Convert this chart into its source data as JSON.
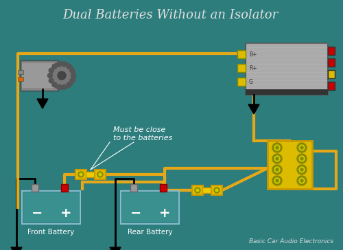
{
  "title": "Dual Batteries Without an Isolator",
  "bg_color": "#2d7d7d",
  "wire_color": "#e6a817",
  "title_color": "#e0e0e0",
  "text_color": "#ffffff",
  "subtitle": "Basic Car Audio Electronics",
  "annotation": "Must be close\nto the batteries",
  "figsize": [
    5.0,
    3.64
  ],
  "dpi": 100
}
